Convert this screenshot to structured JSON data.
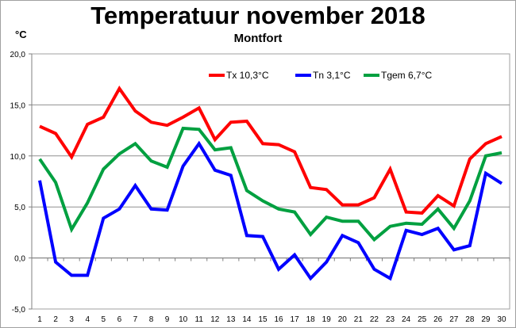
{
  "chart_data": {
    "type": "line",
    "title": "Temperatuur november 2018",
    "subtitle": "Montfort",
    "ylabel": "°C",
    "xlabel": "",
    "ylim": [
      -5,
      20
    ],
    "yticks": [
      "-5,0",
      "0,0",
      "5,0",
      "10,0",
      "15,0",
      "20,0"
    ],
    "ytick_values": [
      -5,
      0,
      5,
      10,
      15,
      20
    ],
    "x": [
      1,
      2,
      3,
      4,
      5,
      6,
      7,
      8,
      9,
      10,
      11,
      12,
      13,
      14,
      15,
      16,
      17,
      18,
      19,
      20,
      21,
      22,
      23,
      24,
      25,
      26,
      27,
      28,
      29,
      30
    ],
    "grid": true,
    "legend_position": "top-right",
    "series": [
      {
        "name": "Tx 10,3°C",
        "color": "#ff0000",
        "values": [
          12.9,
          12.2,
          9.9,
          13.1,
          13.8,
          16.6,
          14.4,
          13.3,
          13.0,
          13.8,
          14.7,
          11.6,
          13.3,
          13.4,
          11.2,
          11.1,
          10.4,
          6.9,
          6.7,
          5.2,
          5.2,
          5.9,
          8.7,
          4.5,
          4.4,
          6.1,
          5.1,
          9.7,
          11.2,
          11.9
        ]
      },
      {
        "name": "Tn 3,1°C",
        "color": "#0000ff",
        "values": [
          7.6,
          -0.4,
          -1.7,
          -1.7,
          3.9,
          4.8,
          7.1,
          4.8,
          4.7,
          9.0,
          11.2,
          8.6,
          8.1,
          2.2,
          2.1,
          -1.1,
          0.3,
          -2.0,
          -0.4,
          2.2,
          1.5,
          -1.1,
          -2.0,
          2.7,
          2.3,
          2.9,
          0.8,
          1.2,
          8.3,
          7.3
        ]
      },
      {
        "name": "Tgem 6,7°C",
        "color": "#00a040",
        "values": [
          9.7,
          7.4,
          2.8,
          5.4,
          8.7,
          10.2,
          11.2,
          9.5,
          8.9,
          12.7,
          12.6,
          10.6,
          10.8,
          6.6,
          5.6,
          4.8,
          4.5,
          2.3,
          4.0,
          3.6,
          3.6,
          1.8,
          3.1,
          3.4,
          3.3,
          4.8,
          2.9,
          5.6,
          10.0,
          10.3
        ]
      }
    ]
  }
}
